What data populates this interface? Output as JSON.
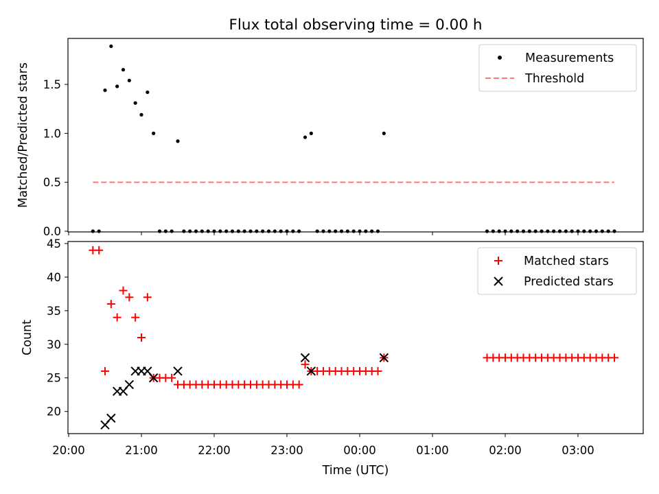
{
  "title": "Flux total observing time = 0.00 h",
  "chart_data": [
    {
      "type": "scatter",
      "ylabel": "Matched/Predicted stars",
      "ylim": [
        0,
        1.97
      ],
      "yticks": [
        0.0,
        0.5,
        1.0,
        1.5
      ],
      "ytick_labels": [
        "0.0",
        "0.5",
        "1.0",
        "1.5"
      ],
      "legend": {
        "placement": "top-right",
        "entries": [
          "Measurements",
          "Threshold"
        ]
      },
      "series": [
        {
          "name": "Measurements",
          "color": "#000000",
          "marker": "dot",
          "points": [
            [
              "20:20",
              0.0
            ],
            [
              "20:25",
              0.0
            ],
            [
              "20:30",
              1.44
            ],
            [
              "20:35",
              1.89
            ],
            [
              "20:40",
              1.48
            ],
            [
              "20:45",
              1.65
            ],
            [
              "20:50",
              1.54
            ],
            [
              "20:55",
              1.31
            ],
            [
              "21:00",
              1.19
            ],
            [
              "21:05",
              1.42
            ],
            [
              "21:10",
              1.0
            ],
            [
              "21:15",
              0.0
            ],
            [
              "21:20",
              0.0
            ],
            [
              "21:25",
              0.0
            ],
            [
              "21:30",
              0.92
            ],
            [
              "21:35",
              0.0
            ],
            [
              "21:40",
              0.0
            ],
            [
              "21:45",
              0.0
            ],
            [
              "21:50",
              0.0
            ],
            [
              "21:55",
              0.0
            ],
            [
              "22:00",
              0.0
            ],
            [
              "22:05",
              0.0
            ],
            [
              "22:10",
              0.0
            ],
            [
              "22:15",
              0.0
            ],
            [
              "22:20",
              0.0
            ],
            [
              "22:25",
              0.0
            ],
            [
              "22:30",
              0.0
            ],
            [
              "22:35",
              0.0
            ],
            [
              "22:40",
              0.0
            ],
            [
              "22:45",
              0.0
            ],
            [
              "22:50",
              0.0
            ],
            [
              "22:55",
              0.0
            ],
            [
              "23:00",
              0.0
            ],
            [
              "23:05",
              0.0
            ],
            [
              "23:10",
              0.0
            ],
            [
              "23:15",
              0.96
            ],
            [
              "23:20",
              1.0
            ],
            [
              "23:25",
              0.0
            ],
            [
              "23:30",
              0.0
            ],
            [
              "23:35",
              0.0
            ],
            [
              "23:40",
              0.0
            ],
            [
              "23:45",
              0.0
            ],
            [
              "23:50",
              0.0
            ],
            [
              "23:55",
              0.0
            ],
            [
              "00:00",
              0.0
            ],
            [
              "00:05",
              0.0
            ],
            [
              "00:10",
              0.0
            ],
            [
              "00:15",
              0.0
            ],
            [
              "00:20",
              1.0
            ],
            [
              "01:45",
              0.0
            ],
            [
              "01:50",
              0.0
            ],
            [
              "01:55",
              0.0
            ],
            [
              "02:00",
              0.0
            ],
            [
              "02:05",
              0.0
            ],
            [
              "02:10",
              0.0
            ],
            [
              "02:15",
              0.0
            ],
            [
              "02:20",
              0.0
            ],
            [
              "02:25",
              0.0
            ],
            [
              "02:30",
              0.0
            ],
            [
              "02:35",
              0.0
            ],
            [
              "02:40",
              0.0
            ],
            [
              "02:45",
              0.0
            ],
            [
              "02:50",
              0.0
            ],
            [
              "02:55",
              0.0
            ],
            [
              "03:00",
              0.0
            ],
            [
              "03:05",
              0.0
            ],
            [
              "03:10",
              0.0
            ],
            [
              "03:15",
              0.0
            ],
            [
              "03:20",
              0.0
            ],
            [
              "03:25",
              0.0
            ],
            [
              "03:30",
              0.0
            ]
          ]
        },
        {
          "name": "Threshold",
          "color": "#ff7777",
          "linestyle": "dashed",
          "points": [
            [
              "20:20",
              0.5
            ],
            [
              "03:30",
              0.5
            ]
          ]
        }
      ]
    },
    {
      "type": "scatter",
      "xlabel": "Time (UTC)",
      "ylabel": "Count",
      "ylim": [
        16.7,
        45.3
      ],
      "yticks": [
        20,
        25,
        30,
        35,
        40,
        45
      ],
      "ytick_labels": [
        "20",
        "25",
        "30",
        "35",
        "40",
        "45"
      ],
      "xticks": [
        "20:00",
        "21:00",
        "22:00",
        "23:00",
        "00:00",
        "01:00",
        "02:00",
        "03:00"
      ],
      "legend": {
        "placement": "top-right",
        "entries": [
          "Matched stars",
          "Predicted stars"
        ]
      },
      "series": [
        {
          "name": "Matched stars",
          "color": "#ff0000",
          "marker": "plus",
          "points": [
            [
              "20:20",
              44
            ],
            [
              "20:25",
              44
            ],
            [
              "20:30",
              26
            ],
            [
              "20:35",
              36
            ],
            [
              "20:40",
              34
            ],
            [
              "20:45",
              38
            ],
            [
              "20:50",
              37
            ],
            [
              "20:55",
              34
            ],
            [
              "21:00",
              31
            ],
            [
              "21:05",
              37
            ],
            [
              "21:10",
              25
            ],
            [
              "21:15",
              25
            ],
            [
              "21:20",
              25
            ],
            [
              "21:25",
              25
            ],
            [
              "21:30",
              24
            ],
            [
              "21:35",
              24
            ],
            [
              "21:40",
              24
            ],
            [
              "21:45",
              24
            ],
            [
              "21:50",
              24
            ],
            [
              "21:55",
              24
            ],
            [
              "22:00",
              24
            ],
            [
              "22:05",
              24
            ],
            [
              "22:10",
              24
            ],
            [
              "22:15",
              24
            ],
            [
              "22:20",
              24
            ],
            [
              "22:25",
              24
            ],
            [
              "22:30",
              24
            ],
            [
              "22:35",
              24
            ],
            [
              "22:40",
              24
            ],
            [
              "22:45",
              24
            ],
            [
              "22:50",
              24
            ],
            [
              "22:55",
              24
            ],
            [
              "23:00",
              24
            ],
            [
              "23:05",
              24
            ],
            [
              "23:10",
              24
            ],
            [
              "23:15",
              27
            ],
            [
              "23:20",
              26
            ],
            [
              "23:25",
              26
            ],
            [
              "23:30",
              26
            ],
            [
              "23:35",
              26
            ],
            [
              "23:40",
              26
            ],
            [
              "23:45",
              26
            ],
            [
              "23:50",
              26
            ],
            [
              "23:55",
              26
            ],
            [
              "00:00",
              26
            ],
            [
              "00:05",
              26
            ],
            [
              "00:10",
              26
            ],
            [
              "00:15",
              26
            ],
            [
              "00:20",
              28
            ],
            [
              "01:45",
              28
            ],
            [
              "01:50",
              28
            ],
            [
              "01:55",
              28
            ],
            [
              "02:00",
              28
            ],
            [
              "02:05",
              28
            ],
            [
              "02:10",
              28
            ],
            [
              "02:15",
              28
            ],
            [
              "02:20",
              28
            ],
            [
              "02:25",
              28
            ],
            [
              "02:30",
              28
            ],
            [
              "02:35",
              28
            ],
            [
              "02:40",
              28
            ],
            [
              "02:45",
              28
            ],
            [
              "02:50",
              28
            ],
            [
              "02:55",
              28
            ],
            [
              "03:00",
              28
            ],
            [
              "03:05",
              28
            ],
            [
              "03:10",
              28
            ],
            [
              "03:15",
              28
            ],
            [
              "03:20",
              28
            ],
            [
              "03:25",
              28
            ],
            [
              "03:30",
              28
            ]
          ]
        },
        {
          "name": "Predicted stars",
          "color": "#000000",
          "marker": "x",
          "points": [
            [
              "20:30",
              18
            ],
            [
              "20:35",
              19
            ],
            [
              "20:40",
              23
            ],
            [
              "20:45",
              23
            ],
            [
              "20:50",
              24
            ],
            [
              "20:55",
              26
            ],
            [
              "21:00",
              26
            ],
            [
              "21:05",
              26
            ],
            [
              "21:10",
              25
            ],
            [
              "21:30",
              26
            ],
            [
              "23:15",
              28
            ],
            [
              "23:20",
              26
            ],
            [
              "00:20",
              28
            ]
          ]
        }
      ]
    }
  ]
}
